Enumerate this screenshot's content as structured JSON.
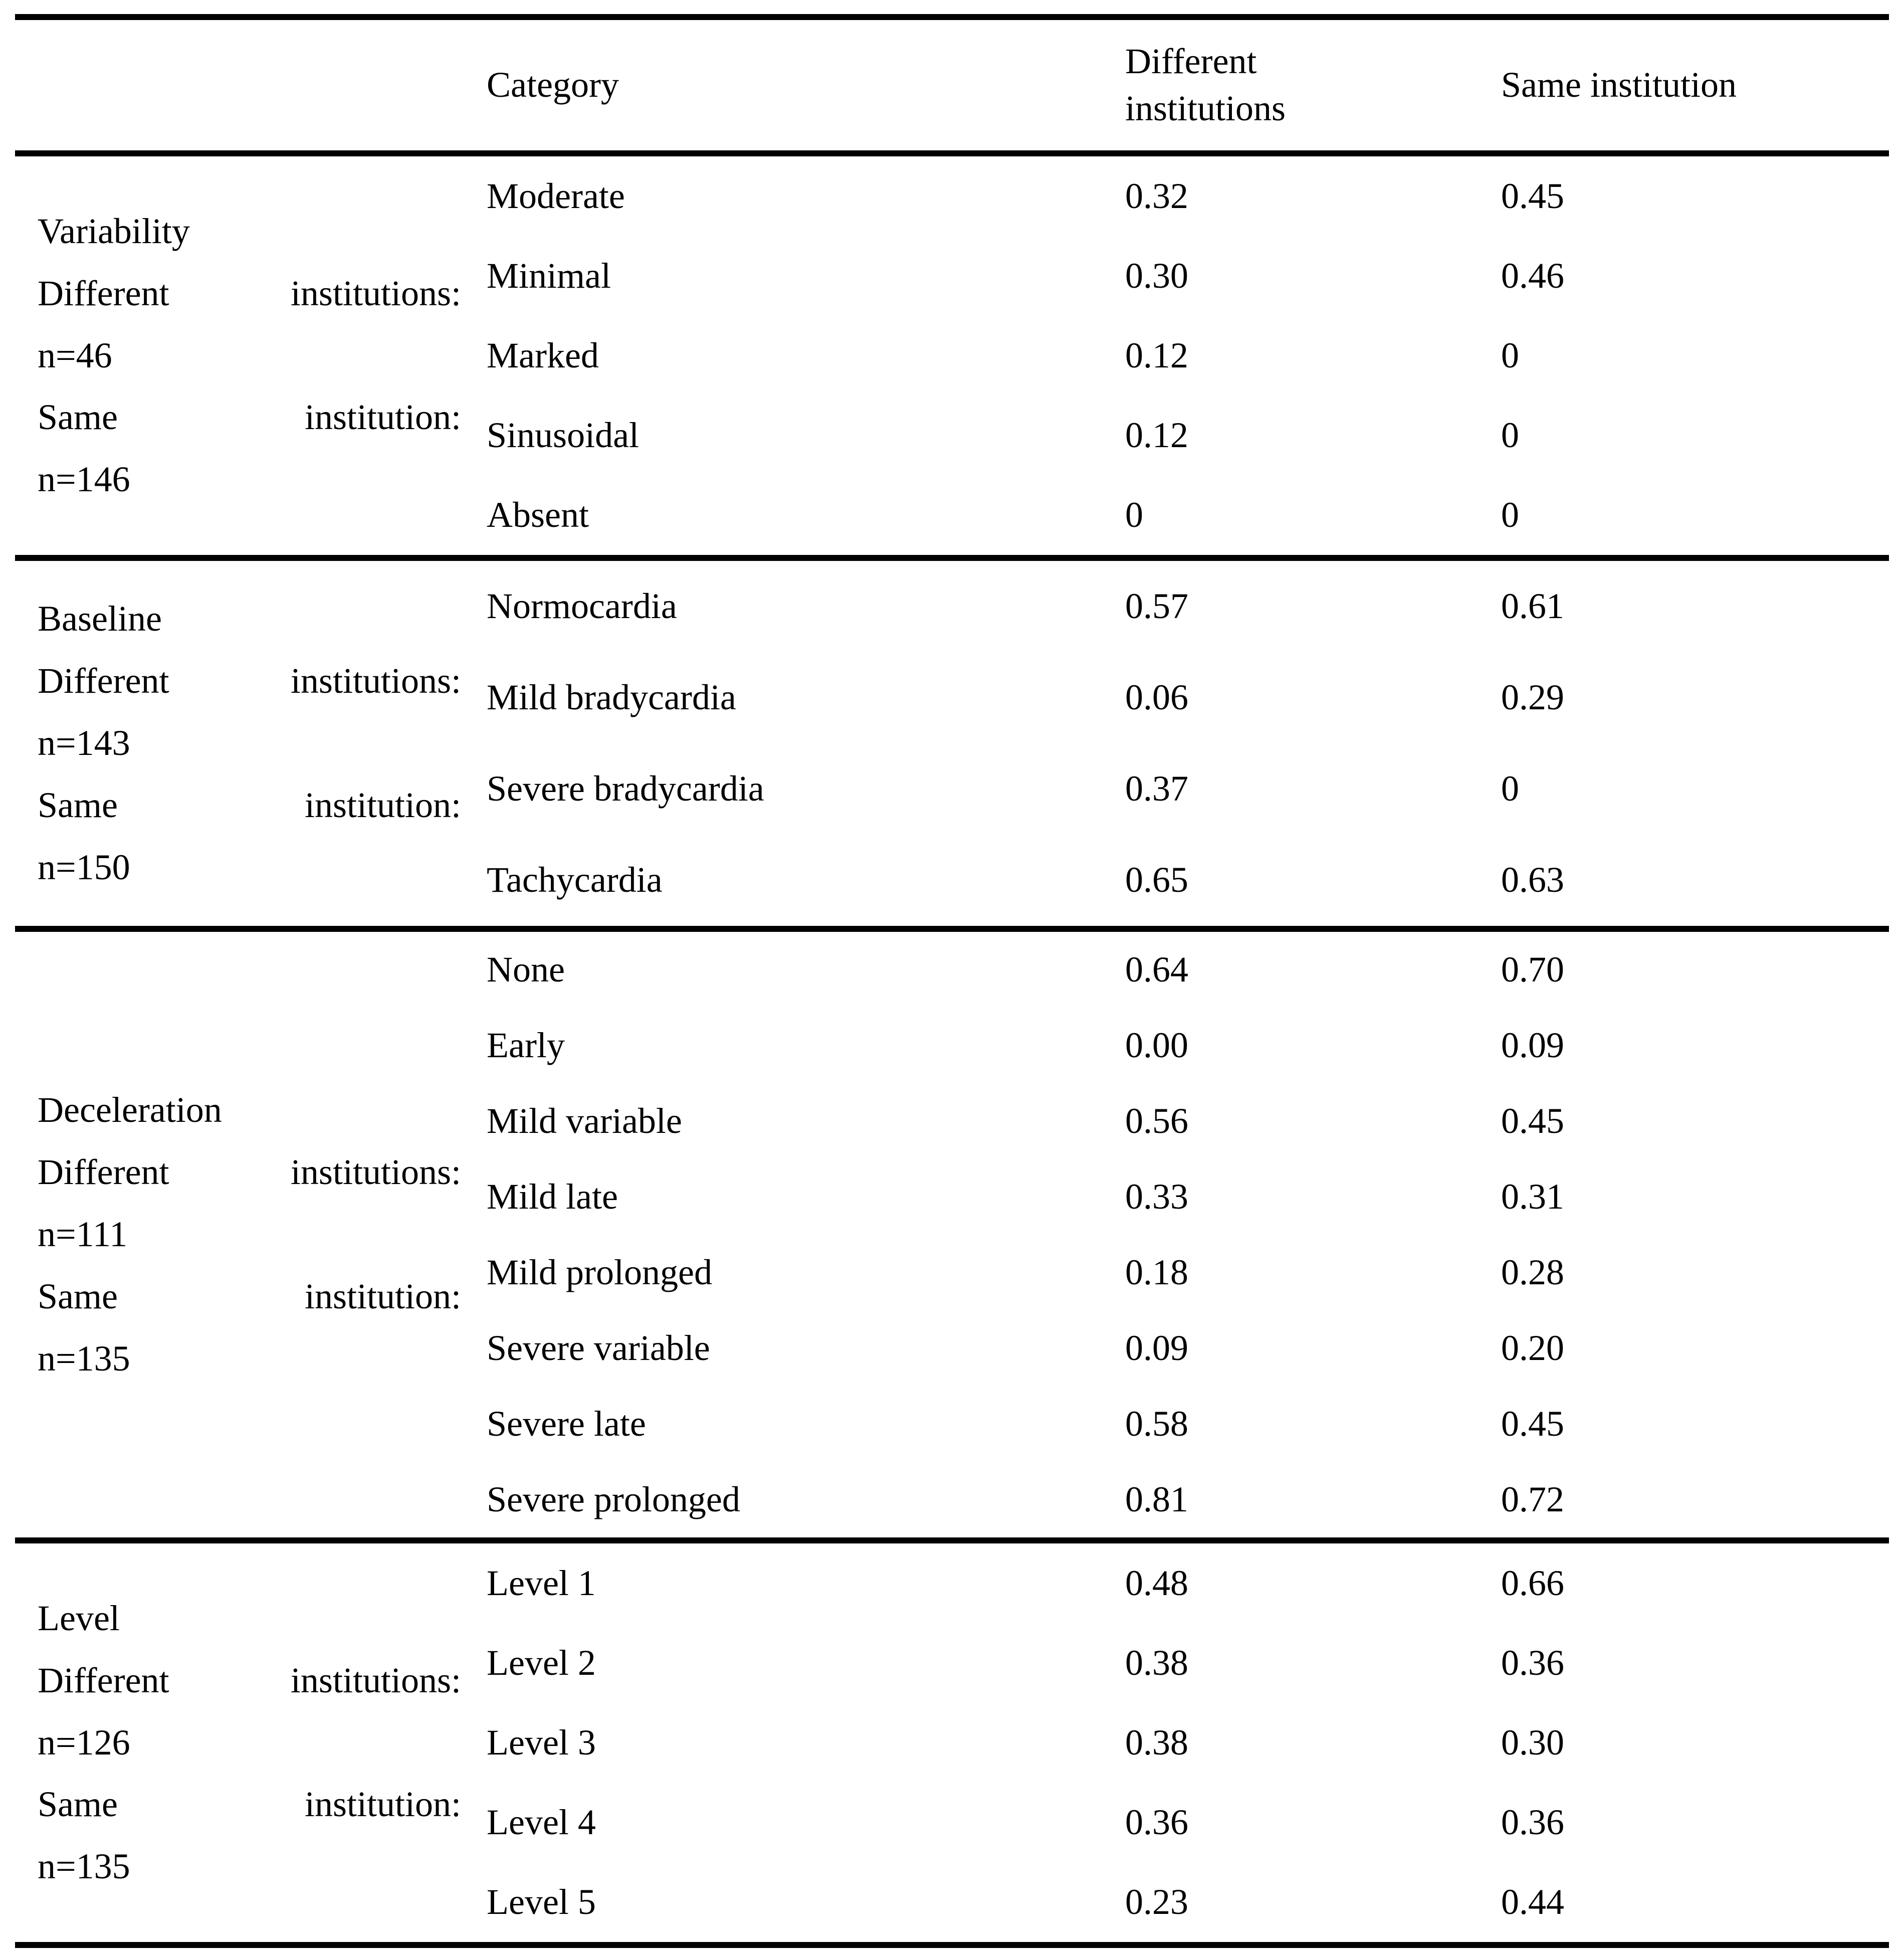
{
  "table": {
    "headers": {
      "category": "Category",
      "different": "Different institutions",
      "same": "Same institution"
    },
    "sections": [
      {
        "group": {
          "title": "Variability",
          "diff_label": [
            "Different",
            "institutions:"
          ],
          "diff_n": "n=46",
          "same_label": [
            "Same",
            "institution:"
          ],
          "same_n": "n=146"
        },
        "rows": [
          {
            "category": "Moderate",
            "different": "0.32",
            "same": "0.45"
          },
          {
            "category": "Minimal",
            "different": "0.30",
            "same": "0.46"
          },
          {
            "category": "Marked",
            "different": "0.12",
            "same": "0"
          },
          {
            "category": "Sinusoidal",
            "different": "0.12",
            "same": "0"
          },
          {
            "category": "Absent",
            "different": "0",
            "same": "0"
          }
        ]
      },
      {
        "group": {
          "title": "Baseline",
          "diff_label": [
            "Different",
            "institutions:"
          ],
          "diff_n": "n=143",
          "same_label": [
            "Same",
            "institution:"
          ],
          "same_n": "n=150"
        },
        "rows": [
          {
            "category": "Normocardia",
            "different": "0.57",
            "same": "0.61"
          },
          {
            "category": "Mild bradycardia",
            "different": "0.06",
            "same": "0.29"
          },
          {
            "category": "Severe bradycardia",
            "different": "0.37",
            "same": "0"
          },
          {
            "category": "Tachycardia",
            "different": "0.65",
            "same": "0.63"
          }
        ]
      },
      {
        "group": {
          "title": "Deceleration",
          "diff_label": [
            "Different",
            "institutions:"
          ],
          "diff_n": "n=111",
          "same_label": [
            "Same",
            "institution:"
          ],
          "same_n": "n=135"
        },
        "rows": [
          {
            "category": "None",
            "different": "0.64",
            "same": "0.70"
          },
          {
            "category": "Early",
            "different": "0.00",
            "same": "0.09"
          },
          {
            "category": "Mild variable",
            "different": "0.56",
            "same": "0.45"
          },
          {
            "category": "Mild late",
            "different": "0.33",
            "same": "0.31"
          },
          {
            "category": "Mild prolonged",
            "different": "0.18",
            "same": "0.28"
          },
          {
            "category": "Severe variable",
            "different": "0.09",
            "same": "0.20"
          },
          {
            "category": "Severe late",
            "different": "0.58",
            "same": "0.45"
          },
          {
            "category": "Severe prolonged",
            "different": "0.81",
            "same": "0.72"
          }
        ]
      },
      {
        "group": {
          "title": "Level",
          "diff_label": [
            "Different",
            "institutions:"
          ],
          "diff_n": "n=126",
          "same_label": [
            "Same",
            "institution:"
          ],
          "same_n": "n=135"
        },
        "rows": [
          {
            "category": "Level 1",
            "different": "0.48",
            "same": "0.66"
          },
          {
            "category": "Level 2",
            "different": "0.38",
            "same": "0.36"
          },
          {
            "category": "Level 3",
            "different": "0.38",
            "same": "0.30"
          },
          {
            "category": "Level 4",
            "different": "0.36",
            "same": "0.36"
          },
          {
            "category": "Level 5",
            "different": "0.23",
            "same": "0.44"
          }
        ]
      }
    ]
  }
}
